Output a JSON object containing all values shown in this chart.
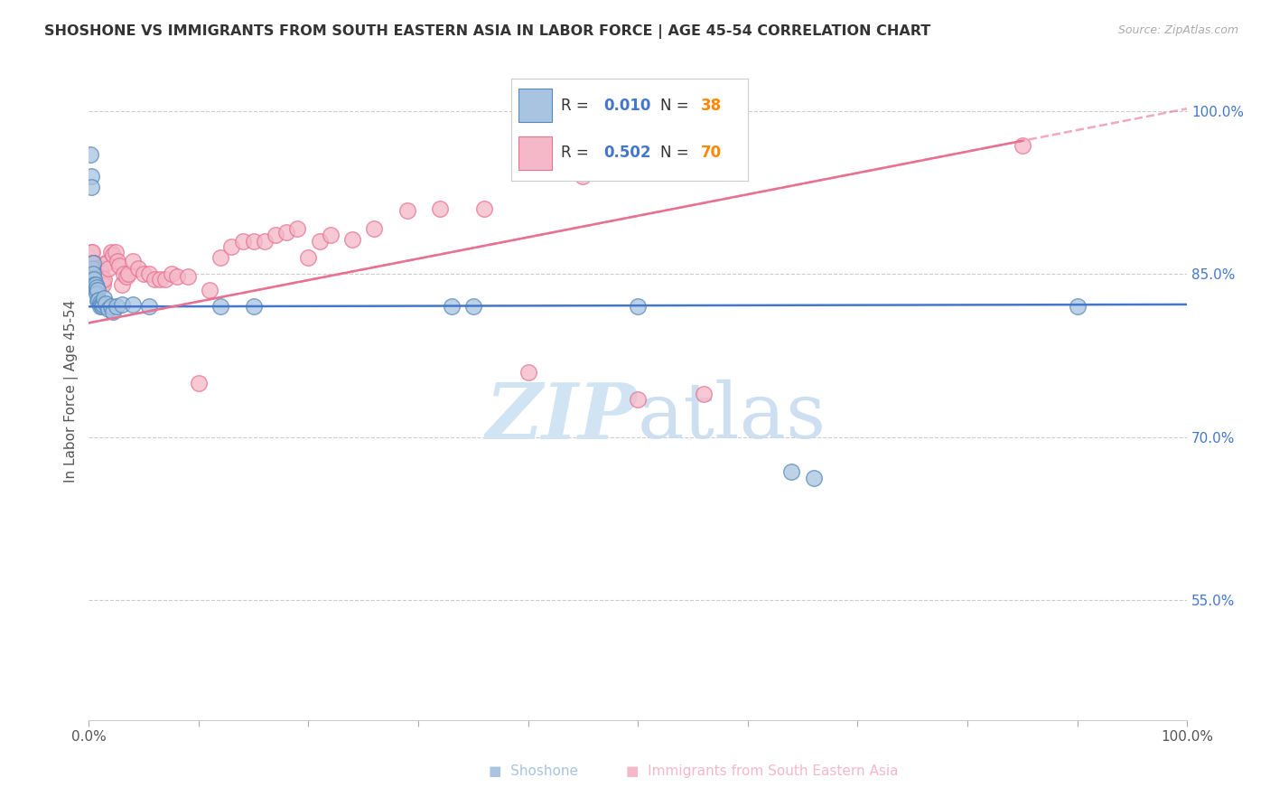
{
  "title": "SHOSHONE VS IMMIGRANTS FROM SOUTH EASTERN ASIA IN LABOR FORCE | AGE 45-54 CORRELATION CHART",
  "source": "Source: ZipAtlas.com",
  "ylabel": "In Labor Force | Age 45-54",
  "xlim": [
    0.0,
    1.0
  ],
  "ylim": [
    0.44,
    1.045
  ],
  "legend_blue_r": "0.010",
  "legend_blue_n": "38",
  "legend_pink_r": "0.502",
  "legend_pink_n": "70",
  "blue_scatter_color": "#A8C4E0",
  "blue_edge_color": "#5588BB",
  "pink_scatter_color": "#F4B8C8",
  "pink_edge_color": "#E87090",
  "blue_line_color": "#4477CC",
  "pink_line_color": "#EE6688",
  "grid_color": "#CCCCCC",
  "bg_color": "#FFFFFF",
  "ytick_color": "#4477CC",
  "watermark_color": "#D0E4F4",
  "shoshone_x": [
    0.001,
    0.002,
    0.002,
    0.003,
    0.003,
    0.004,
    0.004,
    0.005,
    0.005,
    0.006,
    0.006,
    0.007,
    0.007,
    0.008,
    0.008,
    0.009,
    0.01,
    0.01,
    0.011,
    0.012,
    0.013,
    0.014,
    0.015,
    0.018,
    0.02,
    0.022,
    0.025,
    0.03,
    0.04,
    0.055,
    0.12,
    0.15,
    0.33,
    0.35,
    0.5,
    0.64,
    0.66,
    0.9
  ],
  "shoshone_y": [
    0.96,
    0.94,
    0.93,
    0.855,
    0.845,
    0.86,
    0.85,
    0.845,
    0.84,
    0.84,
    0.835,
    0.838,
    0.832,
    0.835,
    0.825,
    0.826,
    0.824,
    0.82,
    0.822,
    0.82,
    0.822,
    0.828,
    0.823,
    0.818,
    0.82,
    0.815,
    0.82,
    0.822,
    0.822,
    0.82,
    0.82,
    0.82,
    0.82,
    0.82,
    0.82,
    0.668,
    0.662,
    0.82
  ],
  "pink_x": [
    0.002,
    0.002,
    0.003,
    0.003,
    0.003,
    0.004,
    0.004,
    0.004,
    0.005,
    0.005,
    0.005,
    0.006,
    0.006,
    0.007,
    0.007,
    0.008,
    0.008,
    0.009,
    0.01,
    0.01,
    0.011,
    0.011,
    0.012,
    0.013,
    0.014,
    0.015,
    0.016,
    0.018,
    0.02,
    0.022,
    0.024,
    0.026,
    0.028,
    0.03,
    0.032,
    0.034,
    0.036,
    0.04,
    0.045,
    0.05,
    0.055,
    0.06,
    0.065,
    0.07,
    0.075,
    0.08,
    0.09,
    0.1,
    0.11,
    0.12,
    0.13,
    0.14,
    0.15,
    0.16,
    0.17,
    0.18,
    0.19,
    0.2,
    0.21,
    0.22,
    0.24,
    0.26,
    0.29,
    0.32,
    0.36,
    0.4,
    0.45,
    0.5,
    0.56,
    0.85
  ],
  "pink_y": [
    0.87,
    0.86,
    0.87,
    0.855,
    0.85,
    0.86,
    0.85,
    0.84,
    0.86,
    0.85,
    0.84,
    0.855,
    0.84,
    0.855,
    0.84,
    0.845,
    0.835,
    0.84,
    0.855,
    0.85,
    0.85,
    0.84,
    0.845,
    0.84,
    0.845,
    0.86,
    0.86,
    0.855,
    0.87,
    0.868,
    0.87,
    0.862,
    0.858,
    0.84,
    0.85,
    0.848,
    0.85,
    0.862,
    0.855,
    0.85,
    0.85,
    0.845,
    0.845,
    0.845,
    0.85,
    0.848,
    0.848,
    0.75,
    0.835,
    0.865,
    0.875,
    0.88,
    0.88,
    0.88,
    0.886,
    0.888,
    0.892,
    0.865,
    0.88,
    0.886,
    0.882,
    0.892,
    0.908,
    0.91,
    0.91,
    0.76,
    0.94,
    0.735,
    0.74,
    0.968
  ],
  "blue_trendline_y0": 0.82,
  "blue_trendline_y1": 0.822,
  "pink_trendline_y0": 0.805,
  "pink_trendline_y1": 1.002
}
